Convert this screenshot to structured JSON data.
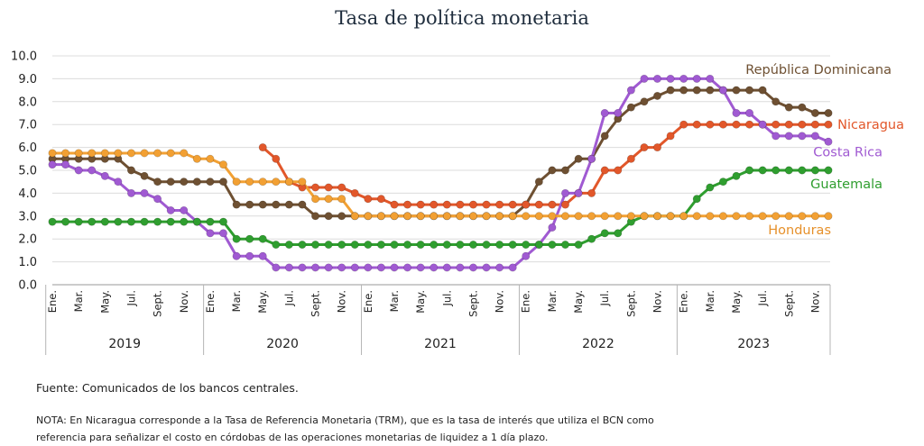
{
  "chart_data": {
    "type": "line",
    "title": "Tasa de política monetaria",
    "ylim": [
      0,
      10
    ],
    "yticks": [
      "0.0",
      "1.0",
      "2.0",
      "3.0",
      "4.0",
      "5.0",
      "6.0",
      "7.0",
      "8.0",
      "9.0",
      "10.0"
    ],
    "grid": true,
    "legend": "inline labels at right end of each series",
    "month_labels": [
      "Ene.",
      "Mar.",
      "May.",
      "Jul.",
      "Sept.",
      "Nov."
    ],
    "years": [
      "2019",
      "2020",
      "2021",
      "2022",
      "2023"
    ],
    "x_start": "2019-01",
    "x_end": "2023-10",
    "series": [
      {
        "name": "República Dominicana",
        "color": "#6e5032",
        "label_color": "#6e5032",
        "values": [
          5.5,
          5.5,
          5.5,
          5.5,
          5.5,
          5.5,
          5.0,
          4.75,
          4.5,
          4.5,
          4.5,
          4.5,
          4.5,
          4.5,
          3.5,
          3.5,
          3.5,
          3.5,
          3.5,
          3.5,
          3.0,
          3.0,
          3.0,
          3.0,
          3.0,
          3.0,
          3.0,
          3.0,
          3.0,
          3.0,
          3.0,
          3.0,
          3.0,
          3.0,
          3.0,
          3.0,
          3.5,
          4.5,
          5.0,
          5.0,
          5.5,
          5.5,
          6.5,
          7.25,
          7.75,
          8.0,
          8.25,
          8.5,
          8.5,
          8.5,
          8.5,
          8.5,
          8.5,
          8.5,
          8.5,
          8.0,
          7.75,
          7.75,
          7.5,
          7.5
        ]
      },
      {
        "name": "Nicaragua",
        "color": "#e2572a",
        "label_color": "#e2572a",
        "values": [
          null,
          null,
          null,
          null,
          null,
          null,
          null,
          null,
          null,
          null,
          null,
          null,
          null,
          null,
          null,
          null,
          6.0,
          5.5,
          4.5,
          4.25,
          4.25,
          4.25,
          4.25,
          4.0,
          3.75,
          3.75,
          3.5,
          3.5,
          3.5,
          3.5,
          3.5,
          3.5,
          3.5,
          3.5,
          3.5,
          3.5,
          3.5,
          3.5,
          3.5,
          3.5,
          4.0,
          4.0,
          5.0,
          5.0,
          5.5,
          6.0,
          6.0,
          6.5,
          7.0,
          7.0,
          7.0,
          7.0,
          7.0,
          7.0,
          7.0,
          7.0,
          7.0,
          7.0,
          7.0,
          7.0
        ]
      },
      {
        "name": "Costa Rica",
        "color": "#a05ad2",
        "label_color": "#a05ad2",
        "values": [
          5.25,
          5.25,
          5.0,
          5.0,
          4.75,
          4.5,
          4.0,
          4.0,
          3.75,
          3.25,
          3.25,
          2.75,
          2.25,
          2.25,
          1.25,
          1.25,
          1.25,
          0.75,
          0.75,
          0.75,
          0.75,
          0.75,
          0.75,
          0.75,
          0.75,
          0.75,
          0.75,
          0.75,
          0.75,
          0.75,
          0.75,
          0.75,
          0.75,
          0.75,
          0.75,
          0.75,
          1.25,
          1.75,
          2.5,
          4.0,
          4.0,
          5.5,
          7.5,
          7.5,
          8.5,
          9.0,
          9.0,
          9.0,
          9.0,
          9.0,
          9.0,
          8.5,
          7.5,
          7.5,
          7.0,
          6.5,
          6.5,
          6.5,
          6.5,
          6.25
        ]
      },
      {
        "name": "Guatemala",
        "color": "#2f9e2f",
        "label_color": "#2f9e2f",
        "values": [
          2.75,
          2.75,
          2.75,
          2.75,
          2.75,
          2.75,
          2.75,
          2.75,
          2.75,
          2.75,
          2.75,
          2.75,
          2.75,
          2.75,
          2.0,
          2.0,
          2.0,
          1.75,
          1.75,
          1.75,
          1.75,
          1.75,
          1.75,
          1.75,
          1.75,
          1.75,
          1.75,
          1.75,
          1.75,
          1.75,
          1.75,
          1.75,
          1.75,
          1.75,
          1.75,
          1.75,
          1.75,
          1.75,
          1.75,
          1.75,
          1.75,
          2.0,
          2.25,
          2.25,
          2.75,
          3.0,
          3.0,
          3.0,
          3.0,
          3.75,
          4.25,
          4.5,
          4.75,
          5.0,
          5.0,
          5.0,
          5.0,
          5.0,
          5.0,
          5.0
        ]
      },
      {
        "name": "Honduras",
        "color": "#f2a033",
        "label_color": "#e6902a",
        "values": [
          5.75,
          5.75,
          5.75,
          5.75,
          5.75,
          5.75,
          5.75,
          5.75,
          5.75,
          5.75,
          5.75,
          5.5,
          5.5,
          5.25,
          4.5,
          4.5,
          4.5,
          4.5,
          4.5,
          4.5,
          3.75,
          3.75,
          3.75,
          3.0,
          3.0,
          3.0,
          3.0,
          3.0,
          3.0,
          3.0,
          3.0,
          3.0,
          3.0,
          3.0,
          3.0,
          3.0,
          3.0,
          3.0,
          3.0,
          3.0,
          3.0,
          3.0,
          3.0,
          3.0,
          3.0,
          3.0,
          3.0,
          3.0,
          3.0,
          3.0,
          3.0,
          3.0,
          3.0,
          3.0,
          3.0,
          3.0,
          3.0,
          3.0,
          3.0,
          3.0
        ]
      }
    ]
  },
  "footer": {
    "source": "Fuente: Comunicados de los bancos centrales.",
    "note_line1": "NOTA: En Nicaragua corresponde a la Tasa de Referencia Monetaria (TRM), que es la tasa de interés que utiliza el BCN como",
    "note_line2": "referencia para señalizar el costo en córdobas de las operaciones monetarias de liquidez a 1 día plazo."
  }
}
